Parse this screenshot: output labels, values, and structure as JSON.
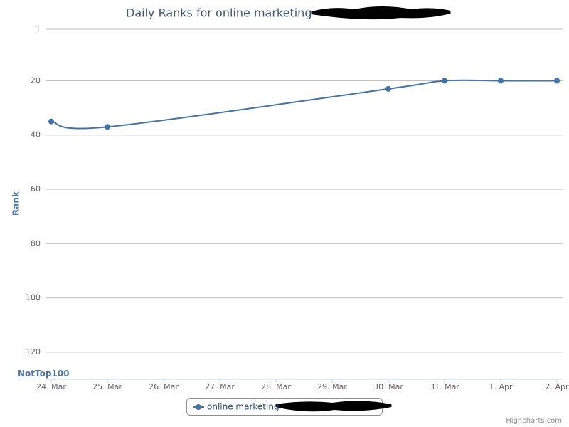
{
  "chart_data": {
    "type": "line",
    "title": "Daily Ranks for online marketing",
    "y_label": "Rank",
    "credits": "Highcharts.com",
    "categories": [
      "24. Mar",
      "25. Mar",
      "26. Mar",
      "27. Mar",
      "28. Mar",
      "29. Mar",
      "30. Mar",
      "31. Mar",
      "1. Apr",
      "2. Apr"
    ],
    "series": [
      {
        "name": "online marketing",
        "color": "#4572a7",
        "x": [
          "24. Mar",
          "25. Mar",
          "30. Mar",
          "31. Mar",
          "1. Apr",
          "2. Apr"
        ],
        "values": [
          35,
          37,
          23,
          20,
          20,
          20
        ]
      }
    ],
    "ylim": [
      1,
      130
    ],
    "y_reversed": true,
    "yticks": [
      1,
      20,
      40,
      60,
      80,
      100,
      120,
      {
        "value": 128,
        "label": "NotTop100"
      }
    ],
    "grid": true,
    "smooth": true,
    "legend": "bottom"
  }
}
